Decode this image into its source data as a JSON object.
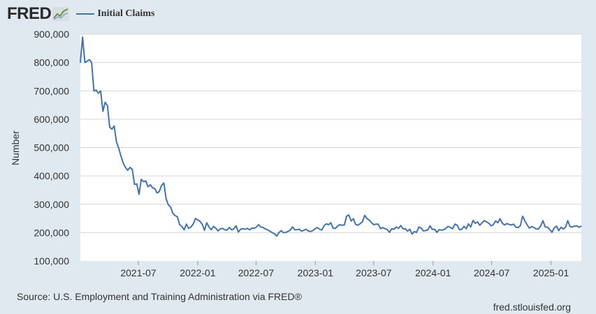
{
  "header": {
    "logo_text": "FRED",
    "logo_icon": "fred-chart-icon"
  },
  "chart_data": {
    "type": "line",
    "title": "",
    "xlabel": "",
    "ylabel": "Number",
    "ylim": [
      100000,
      900000
    ],
    "yticks": [
      "100,000",
      "200,000",
      "300,000",
      "400,000",
      "500,000",
      "600,000",
      "700,000",
      "800,000",
      "900,000"
    ],
    "xticks": [
      "2021-07",
      "2022-01",
      "2022-07",
      "2023-01",
      "2023-07",
      "2024-01",
      "2024-07",
      "2025-01"
    ],
    "grid": true,
    "legend_position": "top-left",
    "series": [
      {
        "name": "Initial Claims",
        "color": "#4572a7",
        "points": [
          [
            "2021-01-02",
            800000
          ],
          [
            "2021-01-09",
            890000
          ],
          [
            "2021-01-16",
            800000
          ],
          [
            "2021-01-23",
            805000
          ],
          [
            "2021-01-30",
            810000
          ],
          [
            "2021-02-06",
            800000
          ],
          [
            "2021-02-13",
            700000
          ],
          [
            "2021-02-20",
            703000
          ],
          [
            "2021-02-27",
            692000
          ],
          [
            "2021-03-06",
            700000
          ],
          [
            "2021-03-13",
            628000
          ],
          [
            "2021-03-20",
            660000
          ],
          [
            "2021-03-27",
            648000
          ],
          [
            "2021-04-03",
            572000
          ],
          [
            "2021-04-10",
            565000
          ],
          [
            "2021-04-17",
            576000
          ],
          [
            "2021-04-24",
            520000
          ],
          [
            "2021-05-01",
            498000
          ],
          [
            "2021-05-08",
            470000
          ],
          [
            "2021-05-15",
            445000
          ],
          [
            "2021-05-22",
            430000
          ],
          [
            "2021-05-29",
            420000
          ],
          [
            "2021-06-05",
            430000
          ],
          [
            "2021-06-12",
            423000
          ],
          [
            "2021-06-19",
            370000
          ],
          [
            "2021-06-26",
            372000
          ],
          [
            "2021-07-03",
            335000
          ],
          [
            "2021-07-10",
            388000
          ],
          [
            "2021-07-17",
            380000
          ],
          [
            "2021-07-24",
            382000
          ],
          [
            "2021-07-31",
            362000
          ],
          [
            "2021-08-07",
            369000
          ],
          [
            "2021-08-14",
            358000
          ],
          [
            "2021-08-21",
            355000
          ],
          [
            "2021-08-28",
            340000
          ],
          [
            "2021-09-04",
            345000
          ],
          [
            "2021-09-11",
            367000
          ],
          [
            "2021-09-18",
            375000
          ],
          [
            "2021-09-25",
            320000
          ],
          [
            "2021-10-02",
            298000
          ],
          [
            "2021-10-09",
            290000
          ],
          [
            "2021-10-16",
            268000
          ],
          [
            "2021-10-23",
            260000
          ],
          [
            "2021-10-30",
            256000
          ],
          [
            "2021-11-06",
            228000
          ],
          [
            "2021-11-13",
            222000
          ],
          [
            "2021-11-20",
            210000
          ],
          [
            "2021-11-27",
            230000
          ],
          [
            "2021-12-04",
            215000
          ],
          [
            "2021-12-11",
            220000
          ],
          [
            "2021-12-18",
            230000
          ],
          [
            "2021-12-25",
            250000
          ],
          [
            "2022-01-01",
            245000
          ],
          [
            "2022-01-08",
            240000
          ],
          [
            "2022-01-15",
            230000
          ],
          [
            "2022-01-22",
            208000
          ],
          [
            "2022-01-29",
            235000
          ],
          [
            "2022-02-05",
            220000
          ],
          [
            "2022-02-12",
            210000
          ],
          [
            "2022-02-19",
            222000
          ],
          [
            "2022-02-26",
            216000
          ],
          [
            "2022-03-05",
            206000
          ],
          [
            "2022-03-12",
            213000
          ],
          [
            "2022-03-19",
            215000
          ],
          [
            "2022-03-26",
            210000
          ],
          [
            "2022-04-02",
            209000
          ],
          [
            "2022-04-09",
            218000
          ],
          [
            "2022-04-16",
            210000
          ],
          [
            "2022-04-23",
            213000
          ],
          [
            "2022-04-30",
            224000
          ],
          [
            "2022-05-07",
            202000
          ],
          [
            "2022-05-14",
            212000
          ],
          [
            "2022-05-21",
            214000
          ],
          [
            "2022-05-28",
            212000
          ],
          [
            "2022-06-04",
            215000
          ],
          [
            "2022-06-11",
            210000
          ],
          [
            "2022-06-18",
            216000
          ],
          [
            "2022-06-25",
            215000
          ],
          [
            "2022-07-02",
            220000
          ],
          [
            "2022-07-09",
            228000
          ],
          [
            "2022-07-16",
            220000
          ],
          [
            "2022-07-23",
            218000
          ],
          [
            "2022-07-30",
            213000
          ],
          [
            "2022-08-06",
            210000
          ],
          [
            "2022-08-13",
            205000
          ],
          [
            "2022-08-20",
            200000
          ],
          [
            "2022-08-27",
            196000
          ],
          [
            "2022-09-03",
            188000
          ],
          [
            "2022-09-10",
            200000
          ],
          [
            "2022-09-17",
            207000
          ],
          [
            "2022-09-24",
            200000
          ],
          [
            "2022-10-01",
            201000
          ],
          [
            "2022-10-08",
            204000
          ],
          [
            "2022-10-15",
            209000
          ],
          [
            "2022-10-22",
            220000
          ],
          [
            "2022-10-29",
            210000
          ],
          [
            "2022-11-05",
            210000
          ],
          [
            "2022-11-12",
            212000
          ],
          [
            "2022-11-19",
            205000
          ],
          [
            "2022-11-26",
            208000
          ],
          [
            "2022-12-03",
            212000
          ],
          [
            "2022-12-10",
            206000
          ],
          [
            "2022-12-17",
            204000
          ],
          [
            "2022-12-24",
            207000
          ],
          [
            "2022-12-31",
            214000
          ],
          [
            "2023-01-07",
            218000
          ],
          [
            "2023-01-14",
            212000
          ],
          [
            "2023-01-21",
            209000
          ],
          [
            "2023-01-28",
            224000
          ],
          [
            "2023-02-04",
            231000
          ],
          [
            "2023-02-11",
            228000
          ],
          [
            "2023-02-18",
            235000
          ],
          [
            "2023-02-25",
            215000
          ],
          [
            "2023-03-04",
            215000
          ],
          [
            "2023-03-11",
            223000
          ],
          [
            "2023-03-18",
            228000
          ],
          [
            "2023-03-25",
            226000
          ],
          [
            "2023-04-01",
            227000
          ],
          [
            "2023-04-08",
            258000
          ],
          [
            "2023-04-15",
            262000
          ],
          [
            "2023-04-22",
            241000
          ],
          [
            "2023-04-29",
            249000
          ],
          [
            "2023-05-06",
            229000
          ],
          [
            "2023-05-13",
            226000
          ],
          [
            "2023-05-20",
            232000
          ],
          [
            "2023-05-27",
            238000
          ],
          [
            "2023-06-03",
            261000
          ],
          [
            "2023-06-10",
            250000
          ],
          [
            "2023-06-17",
            244000
          ],
          [
            "2023-06-24",
            236000
          ],
          [
            "2023-07-01",
            228000
          ],
          [
            "2023-07-08",
            230000
          ],
          [
            "2023-07-15",
            230000
          ],
          [
            "2023-07-22",
            214000
          ],
          [
            "2023-07-29",
            218000
          ],
          [
            "2023-08-05",
            214000
          ],
          [
            "2023-08-12",
            211000
          ],
          [
            "2023-08-19",
            201000
          ],
          [
            "2023-08-26",
            214000
          ],
          [
            "2023-09-02",
            212000
          ],
          [
            "2023-09-09",
            220000
          ],
          [
            "2023-09-16",
            215000
          ],
          [
            "2023-09-23",
            225000
          ],
          [
            "2023-09-30",
            213000
          ],
          [
            "2023-10-07",
            214000
          ],
          [
            "2023-10-14",
            205000
          ],
          [
            "2023-10-21",
            212000
          ],
          [
            "2023-10-28",
            195000
          ],
          [
            "2023-11-04",
            204000
          ],
          [
            "2023-11-11",
            201000
          ],
          [
            "2023-11-18",
            220000
          ],
          [
            "2023-11-25",
            216000
          ],
          [
            "2023-12-02",
            206000
          ],
          [
            "2023-12-09",
            207000
          ],
          [
            "2023-12-16",
            210000
          ],
          [
            "2023-12-23",
            224000
          ],
          [
            "2023-12-30",
            211000
          ],
          [
            "2024-01-06",
            212000
          ],
          [
            "2024-01-13",
            201000
          ],
          [
            "2024-01-20",
            210000
          ],
          [
            "2024-01-27",
            209000
          ],
          [
            "2024-02-03",
            210000
          ],
          [
            "2024-02-10",
            215000
          ],
          [
            "2024-02-17",
            222000
          ],
          [
            "2024-02-24",
            218000
          ],
          [
            "2024-03-02",
            214000
          ],
          [
            "2024-03-09",
            230000
          ],
          [
            "2024-03-16",
            226000
          ],
          [
            "2024-03-23",
            210000
          ],
          [
            "2024-03-30",
            212000
          ],
          [
            "2024-04-06",
            222000
          ],
          [
            "2024-04-13",
            214000
          ],
          [
            "2024-04-20",
            231000
          ],
          [
            "2024-04-27",
            220000
          ],
          [
            "2024-05-04",
            243000
          ],
          [
            "2024-05-11",
            233000
          ],
          [
            "2024-05-18",
            238000
          ],
          [
            "2024-05-25",
            226000
          ],
          [
            "2024-06-01",
            235000
          ],
          [
            "2024-06-08",
            242000
          ],
          [
            "2024-06-15",
            238000
          ],
          [
            "2024-06-22",
            233000
          ],
          [
            "2024-06-29",
            224000
          ],
          [
            "2024-07-06",
            228000
          ],
          [
            "2024-07-13",
            241000
          ],
          [
            "2024-07-20",
            235000
          ],
          [
            "2024-07-27",
            249000
          ],
          [
            "2024-08-03",
            233000
          ],
          [
            "2024-08-10",
            227000
          ],
          [
            "2024-08-17",
            232000
          ],
          [
            "2024-08-24",
            229000
          ],
          [
            "2024-08-31",
            227000
          ],
          [
            "2024-09-07",
            230000
          ],
          [
            "2024-09-14",
            219000
          ],
          [
            "2024-09-21",
            218000
          ],
          [
            "2024-09-28",
            225000
          ],
          [
            "2024-10-05",
            258000
          ],
          [
            "2024-10-12",
            241000
          ],
          [
            "2024-10-19",
            227000
          ],
          [
            "2024-10-26",
            216000
          ],
          [
            "2024-11-02",
            221000
          ],
          [
            "2024-11-09",
            218000
          ],
          [
            "2024-11-16",
            213000
          ],
          [
            "2024-11-23",
            213000
          ],
          [
            "2024-11-30",
            224000
          ],
          [
            "2024-12-07",
            242000
          ],
          [
            "2024-12-14",
            220000
          ],
          [
            "2024-12-21",
            219000
          ],
          [
            "2024-12-28",
            211000
          ],
          [
            "2025-01-04",
            201000
          ],
          [
            "2025-01-11",
            217000
          ],
          [
            "2025-01-18",
            223000
          ],
          [
            "2025-01-25",
            207000
          ],
          [
            "2025-02-01",
            219000
          ],
          [
            "2025-02-08",
            213000
          ],
          [
            "2025-02-15",
            219000
          ],
          [
            "2025-02-22",
            242000
          ],
          [
            "2025-03-01",
            221000
          ],
          [
            "2025-03-08",
            220000
          ],
          [
            "2025-03-15",
            223000
          ],
          [
            "2025-03-22",
            224000
          ],
          [
            "2025-03-29",
            219000
          ],
          [
            "2025-04-05",
            223000
          ]
        ]
      }
    ]
  },
  "footer": {
    "source": "Source: U.S. Employment and Training Administration via FRED®",
    "site": "fred.stlouisfed.org"
  }
}
